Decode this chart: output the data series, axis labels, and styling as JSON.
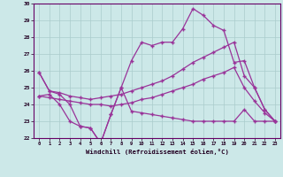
{
  "bg_color": "#cce8e8",
  "grid_color": "#aacccc",
  "line_color": "#993399",
  "xlabel": "Windchill (Refroidissement éolien,°C)",
  "hours": [
    0,
    1,
    2,
    3,
    4,
    5,
    6,
    7,
    8,
    9,
    10,
    11,
    12,
    13,
    14,
    15,
    16,
    17,
    18,
    19,
    20,
    21,
    22,
    23
  ],
  "line_jagged": [
    25.9,
    24.8,
    24.6,
    24.0,
    22.7,
    22.6,
    21.7,
    23.4,
    25.0,
    26.6,
    27.7,
    27.5,
    27.7,
    27.7,
    28.5,
    29.7,
    29.3,
    28.7,
    28.4,
    26.5,
    26.6,
    25.0,
    23.7,
    23.0
  ],
  "line_upper": [
    25.9,
    24.8,
    24.7,
    24.5,
    24.4,
    24.3,
    24.4,
    24.5,
    24.6,
    24.8,
    25.0,
    25.2,
    25.4,
    25.7,
    26.1,
    26.5,
    26.8,
    27.1,
    27.4,
    27.7,
    25.7,
    25.0,
    23.7,
    23.0
  ],
  "line_mid": [
    24.5,
    24.4,
    24.3,
    24.2,
    24.1,
    24.0,
    24.0,
    23.9,
    24.0,
    24.1,
    24.3,
    24.4,
    24.6,
    24.8,
    25.0,
    25.2,
    25.5,
    25.7,
    25.9,
    26.2,
    25.0,
    24.2,
    23.5,
    23.0
  ],
  "line_lower": [
    24.5,
    24.6,
    24.0,
    23.0,
    22.7,
    22.6,
    21.7,
    23.4,
    25.0,
    23.6,
    23.5,
    23.4,
    23.3,
    23.2,
    23.1,
    23.0,
    23.0,
    23.0,
    23.0,
    23.0,
    23.7,
    23.0,
    23.0,
    23.0
  ],
  "ylim": [
    22,
    30
  ],
  "yticks": [
    22,
    23,
    24,
    25,
    26,
    27,
    28,
    29,
    30
  ],
  "xticks": [
    0,
    1,
    2,
    3,
    4,
    5,
    6,
    7,
    8,
    9,
    10,
    11,
    12,
    13,
    14,
    15,
    16,
    17,
    18,
    19,
    20,
    21,
    22,
    23
  ]
}
